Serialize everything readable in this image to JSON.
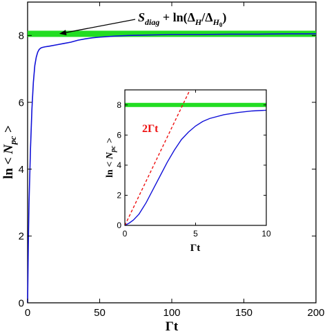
{
  "chart_data": [
    {
      "type": "line",
      "xlabel": "Γt",
      "ylabel": "ln < N_pc >",
      "xlim": [
        0,
        200
      ],
      "ylim": [
        0,
        9
      ],
      "xticks": [
        0,
        50,
        100,
        150,
        200
      ],
      "yticks": [
        0,
        2,
        4,
        6,
        8
      ],
      "grid": false,
      "series": [
        {
          "color": "#1010d8",
          "x": [
            0,
            0.3,
            0.6,
            1,
            1.5,
            2,
            3,
            4,
            5,
            6,
            7,
            8,
            9,
            10,
            12,
            15,
            20,
            25,
            30,
            35,
            40,
            45,
            50,
            60,
            70,
            80,
            90,
            100,
            120,
            140,
            160,
            180,
            200
          ],
          "y": [
            0,
            1.0,
            2.0,
            3.0,
            3.8,
            4.6,
            5.8,
            6.6,
            7.1,
            7.35,
            7.5,
            7.58,
            7.62,
            7.64,
            7.66,
            7.68,
            7.72,
            7.76,
            7.8,
            7.86,
            7.9,
            7.93,
            7.95,
            7.98,
            8.0,
            8.01,
            8.02,
            8.03,
            8.03,
            8.04,
            8.04,
            8.05,
            8.05
          ]
        }
      ],
      "reference_band": {
        "y": 8.05,
        "color": "#22dd22"
      },
      "annotation": {
        "text_main": "S",
        "text_sub": "diag",
        "text_rest": " + ln(Δ",
        "text_sub2": "H",
        "text_mid": "/Δ",
        "text_sub3": "H",
        "text_subsub": "0",
        "text_close": ")",
        "arrow_to": {
          "x": 22,
          "y": 8.05
        }
      }
    },
    {
      "type": "line",
      "xlabel": "Γt",
      "ylabel": "ln < N_pc >",
      "xlim": [
        0,
        10
      ],
      "ylim": [
        0,
        9
      ],
      "xticks": [
        0,
        5,
        10
      ],
      "yticks": [
        0,
        2,
        4,
        6,
        8
      ],
      "grid": false,
      "series": [
        {
          "color": "#1010d8",
          "x": [
            0,
            0.3,
            0.6,
            1,
            1.5,
            2,
            2.5,
            3,
            3.5,
            4,
            4.5,
            5,
            5.5,
            6,
            7,
            8,
            9,
            10
          ],
          "y": [
            0,
            0.15,
            0.35,
            0.75,
            1.5,
            2.4,
            3.3,
            4.2,
            5.0,
            5.7,
            6.2,
            6.6,
            6.9,
            7.1,
            7.35,
            7.5,
            7.6,
            7.65
          ]
        },
        {
          "name": "2Γt",
          "color": "#ee1111",
          "dashed": true,
          "x": [
            0,
            4.6
          ],
          "y": [
            0,
            9.2
          ]
        }
      ],
      "reference_band": {
        "y": 8.0,
        "color": "#22dd22"
      },
      "series_label": "2Γt"
    }
  ]
}
